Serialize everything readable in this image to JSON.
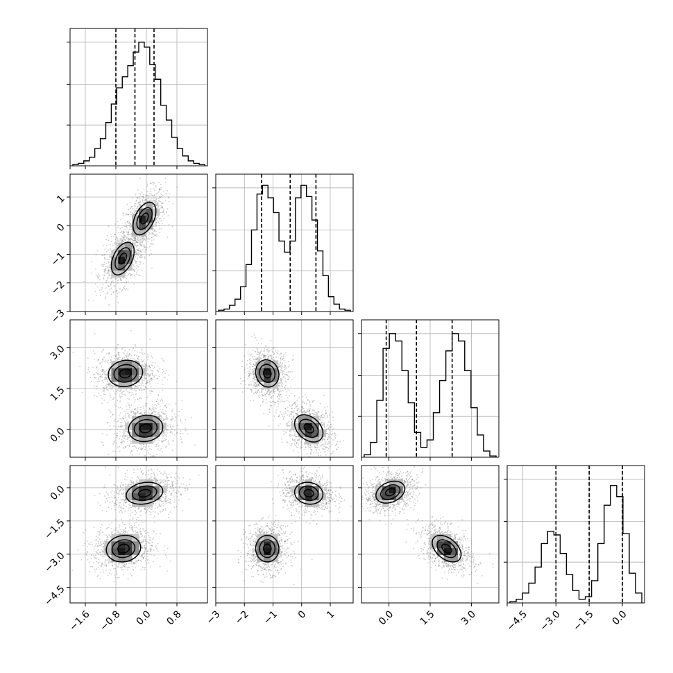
{
  "chart_data": {
    "type": "corner",
    "grid": true,
    "colors": {
      "line": "#000000",
      "grid": "#b0b0b0",
      "scatter": "#6e6e6e"
    },
    "variables": [
      {
        "index": 0,
        "range": [
          -2.0,
          1.6
        ],
        "ticks": [
          -1.6,
          -0.8,
          0.0,
          0.8
        ],
        "tick_labels": [
          "−1.6",
          "−0.8",
          "0.0",
          "0.8"
        ],
        "quantiles": [
          -0.8,
          -0.3,
          0.2
        ]
      },
      {
        "index": 1,
        "range": [
          -3.0,
          1.8
        ],
        "ticks": [
          -3,
          -2,
          -1,
          0,
          1
        ],
        "tick_labels": [
          "−3",
          "−2",
          "−1",
          "0",
          "1"
        ],
        "quantiles": [
          -1.4,
          -0.4,
          0.5
        ]
      },
      {
        "index": 2,
        "range": [
          -1.0,
          4.0
        ],
        "ticks": [
          0.0,
          1.5,
          3.0
        ],
        "tick_labels": [
          "0.0",
          "1.5",
          "3.0"
        ],
        "quantiles": [
          -0.1,
          1.0,
          2.3
        ]
      },
      {
        "index": 3,
        "range": [
          -5.2,
          1.0
        ],
        "ticks": [
          -4.5,
          -3.0,
          -1.5,
          0.0
        ],
        "tick_labels": [
          "−4.5",
          "−3.0",
          "−1.5",
          "0.0"
        ],
        "quantiles": [
          -3.0,
          -1.5,
          0.0
        ]
      }
    ],
    "histograms": [
      {
        "var": 0,
        "values": [
          1,
          2,
          4,
          7,
          14,
          22,
          35,
          50,
          63,
          72,
          81,
          92,
          100,
          96,
          82,
          70,
          49,
          37,
          23,
          14,
          8,
          4,
          2,
          1
        ]
      },
      {
        "var": 1,
        "values": [
          1,
          2,
          5,
          10,
          20,
          38,
          66,
          95,
          102,
          92,
          80,
          57,
          48,
          57,
          92,
          102,
          93,
          74,
          49,
          29,
          12,
          6,
          2,
          1
        ]
      },
      {
        "var": 2,
        "values": [
          2,
          12,
          46,
          88,
          100,
          94,
          70,
          44,
          20,
          8,
          14,
          36,
          62,
          86,
          100,
          94,
          70,
          40,
          18,
          5,
          1
        ]
      },
      {
        "var": 3,
        "values": [
          1,
          3,
          8,
          16,
          29,
          48,
          58,
          55,
          40,
          23,
          10,
          3,
          5,
          18,
          48,
          79,
          95,
          86,
          56,
          24,
          8
        ]
      }
    ],
    "pairs": [
      {
        "x": 0,
        "y": 1,
        "modes": [
          {
            "mx": -0.05,
            "my": 0.25,
            "sx": 0.2,
            "sy": 0.38,
            "rho": 0.45,
            "w": 0.5
          },
          {
            "mx": -0.62,
            "my": -1.15,
            "sx": 0.2,
            "sy": 0.38,
            "rho": 0.45,
            "w": 0.5
          }
        ]
      },
      {
        "x": 0,
        "y": 2,
        "modes": [
          {
            "mx": -0.55,
            "my": 2.05,
            "sx": 0.3,
            "sy": 0.32,
            "rho": 0.1,
            "w": 0.5
          },
          {
            "mx": -0.02,
            "my": 0.05,
            "sx": 0.3,
            "sy": 0.32,
            "rho": 0.1,
            "w": 0.5
          }
        ]
      },
      {
        "x": 1,
        "y": 2,
        "modes": [
          {
            "mx": -1.2,
            "my": 2.05,
            "sx": 0.27,
            "sy": 0.33,
            "rho": -0.1,
            "w": 0.5
          },
          {
            "mx": 0.25,
            "my": 0.05,
            "sx": 0.33,
            "sy": 0.33,
            "rho": -0.35,
            "w": 0.5
          }
        ]
      },
      {
        "x": 0,
        "y": 3,
        "modes": [
          {
            "mx": -0.05,
            "my": -0.25,
            "sx": 0.32,
            "sy": 0.33,
            "rho": 0.2,
            "w": 0.5
          },
          {
            "mx": -0.6,
            "my": -2.75,
            "sx": 0.3,
            "sy": 0.4,
            "rho": 0.1,
            "w": 0.5
          }
        ]
      },
      {
        "x": 1,
        "y": 3,
        "modes": [
          {
            "mx": 0.25,
            "my": -0.25,
            "sx": 0.33,
            "sy": 0.33,
            "rho": -0.1,
            "w": 0.5
          },
          {
            "mx": -1.2,
            "my": -2.75,
            "sx": 0.27,
            "sy": 0.4,
            "rho": 0.0,
            "w": 0.5
          }
        ]
      },
      {
        "x": 2,
        "y": 3,
        "modes": [
          {
            "mx": 0.05,
            "my": -0.2,
            "sx": 0.35,
            "sy": 0.33,
            "rho": 0.3,
            "w": 0.5
          },
          {
            "mx": 2.1,
            "my": -2.75,
            "sx": 0.35,
            "sy": 0.4,
            "rho": -0.45,
            "w": 0.5
          }
        ]
      }
    ],
    "contour_levels": [
      0.5,
      1.0,
      1.5
    ]
  }
}
